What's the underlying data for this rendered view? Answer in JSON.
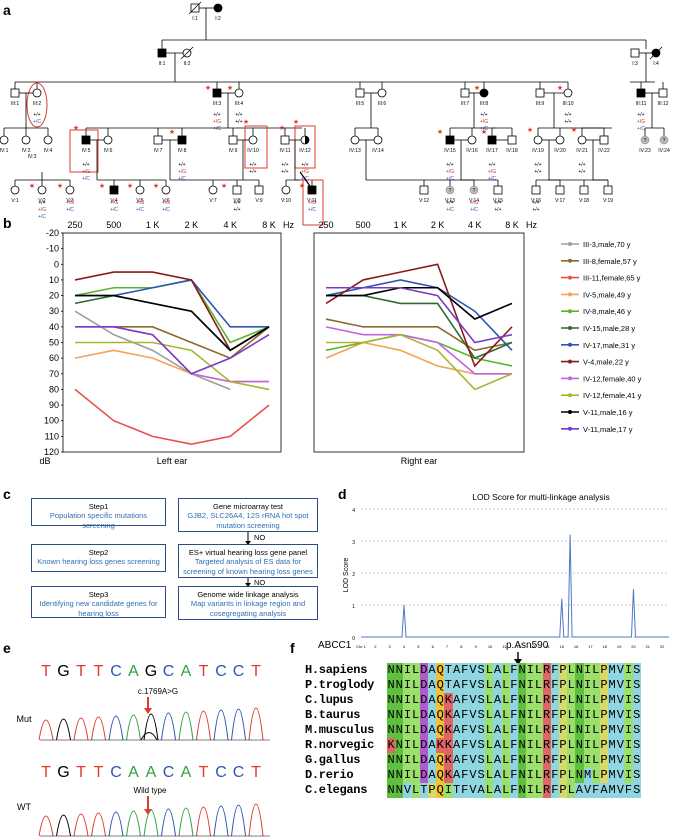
{
  "panels": {
    "a": "a",
    "b": "b",
    "c": "c",
    "d": "d",
    "e": "e",
    "f": "f"
  },
  "pedigree": {
    "gen1": [
      "I:1",
      "I:2",
      "I:3",
      "I:4"
    ],
    "gen2": [
      "II:1",
      "II:2"
    ],
    "gen3": [
      "III:1",
      "III:2",
      "III:3",
      "III:4",
      "III:5",
      "III:6",
      "III:7",
      "III:8",
      "III:9",
      "III:10",
      "III:11",
      "III:12"
    ],
    "gen4": [
      "IV:1",
      "IV:2",
      "IV:3",
      "IV:4",
      "IV:5",
      "IV:6",
      "IV:7",
      "IV:8",
      "IV:9",
      "IV:10",
      "IV:11",
      "IV:12",
      "IV:13",
      "IV:14",
      "IV:15",
      "IV:16",
      "IV:17",
      "IV:18",
      "IV:19",
      "IV:20",
      "IV:21",
      "IV:22",
      "IV:23",
      "IV:24"
    ],
    "gen5": [
      "V:1",
      "V:2",
      "V:3",
      "V:4",
      "V:5",
      "V:6",
      "V:7",
      "V:8",
      "V:9",
      "V:10",
      "V:11",
      "V:12",
      "V:13",
      "V:14",
      "V:15",
      "V:16",
      "V:17",
      "V:18",
      "V:19"
    ],
    "genotypes": {
      "wt": "+/+",
      "mut_g": "+/G",
      "mut_c": "+/C",
      "unknown": "?"
    }
  },
  "audiogram": {
    "freq_labels": [
      "250",
      "500",
      "1 K",
      "2 K",
      "4 K",
      "8 K"
    ],
    "hz": "Hz",
    "y_ticks": [
      "-20",
      "-10",
      "0",
      "10",
      "20",
      "30",
      "40",
      "50",
      "60",
      "70",
      "80",
      "90",
      "100",
      "110",
      "120"
    ],
    "y_unit": "dB",
    "left_title": "Left ear",
    "right_title": "Right ear",
    "legend": [
      "III-3,male,70 y",
      "III-8,female,57 y",
      "III-11,female,65 y",
      "IV-5,male,49 y",
      "IV-8,male,46 y",
      "IV-15,male,28 y",
      "IV-17,male,31 y",
      "V-4,male,22 y",
      "IV-12,female,40 y",
      "IV-12,female,41 y",
      "V-11,male,16 y",
      "V-11,male,17 y"
    ],
    "colors": [
      "#9e9e9e",
      "#8b6a2f",
      "#e8504e",
      "#f4a259",
      "#5ab52e",
      "#2e6b2e",
      "#2e57b5",
      "#8a1c1c",
      "#c266e0",
      "#a9b52e",
      "#000000",
      "#7b3bc2"
    ],
    "left": [
      [
        30,
        45,
        55,
        70,
        80,
        null
      ],
      [
        null,
        40,
        40,
        50,
        60,
        40
      ],
      [
        80,
        100,
        110,
        115,
        110,
        90
      ],
      [
        60,
        55,
        60,
        70,
        75,
        75
      ],
      [
        20,
        15,
        15,
        10,
        50,
        40
      ],
      [
        25,
        20,
        25,
        30,
        55,
        40
      ],
      [
        20,
        20,
        15,
        10,
        40,
        40
      ],
      [
        10,
        5,
        5,
        10,
        55,
        40
      ],
      [
        40,
        40,
        45,
        70,
        75,
        75
      ],
      [
        50,
        50,
        50,
        55,
        75,
        80
      ],
      [
        20,
        20,
        25,
        30,
        55,
        40
      ],
      [
        40,
        40,
        45,
        70,
        60,
        45
      ]
    ],
    "right": [
      [
        null,
        null,
        null,
        null,
        null,
        null
      ],
      [
        35,
        40,
        40,
        40,
        55,
        50
      ],
      [
        null,
        null,
        null,
        null,
        null,
        null
      ],
      [
        60,
        50,
        55,
        65,
        70,
        70
      ],
      [
        55,
        50,
        45,
        50,
        60,
        65
      ],
      [
        20,
        20,
        25,
        25,
        60,
        50
      ],
      [
        20,
        15,
        10,
        15,
        30,
        55
      ],
      [
        25,
        10,
        5,
        0,
        65,
        40
      ],
      [
        40,
        45,
        45,
        50,
        70,
        70
      ],
      [
        50,
        50,
        45,
        55,
        80,
        70
      ],
      [
        20,
        20,
        15,
        15,
        35,
        25
      ],
      [
        15,
        15,
        15,
        20,
        50,
        45
      ]
    ]
  },
  "flow": {
    "step1_t": "Step1",
    "step1_s": "Population specific mutations screening",
    "step2_t": "Step2",
    "step2_s": "Known hearing loss genes screening",
    "step3_t": "Step3",
    "step3_s": "Identifying new candidate genes for hearing loss",
    "box1_t": "Gene microarray test",
    "box1_s": "GJB2, SLC26A4, 12S rRNA hot spot mutation screening",
    "box2_t": "ES+ virtual hearing loss gene panel",
    "box2_s": "Targeted analysis of ES data for screening of known hearing loss genes",
    "box3_t": "Genome wide linkage analysis",
    "box3_s": "Map variants in linkage region and cosegregating analysis",
    "no": "NO"
  },
  "chart_data": {
    "type": "line",
    "title": "LOD Score for multi-linkage analysis",
    "ylabel": "LOD Score",
    "ylim": [
      0,
      4
    ],
    "y_ticks": [
      "0",
      "1",
      "2",
      "3",
      "4"
    ],
    "x_chr_label": "Chr 1",
    "chromosomes": [
      "2",
      "3",
      "4",
      "5",
      "6",
      "7",
      "8",
      "9",
      "10",
      "11",
      "12",
      "13",
      "14",
      "15",
      "16",
      "17",
      "18",
      "19",
      "20",
      "21",
      "22"
    ],
    "peaks": [
      {
        "chr": "4",
        "lod": 1.0
      },
      {
        "chr": "15",
        "lod": 1.2
      },
      {
        "chr": "16",
        "lod": 3.2
      },
      {
        "chr": "20",
        "lod": 1.5
      }
    ]
  },
  "chromatogram": {
    "mut_seq": [
      "T",
      "G",
      "T",
      "T",
      "C",
      "A",
      "G",
      "C",
      "A",
      "T",
      "C",
      "C",
      "T"
    ],
    "wt_seq": [
      "T",
      "G",
      "T",
      "T",
      "C",
      "A",
      "A",
      "C",
      "A",
      "T",
      "C",
      "C",
      "T"
    ],
    "mut_label": "Mut",
    "wt_label": "WT",
    "mut_annot": "c.1769A>G",
    "wt_annot": "Wild type"
  },
  "alignment": {
    "gene": "ABCC1",
    "site": "p.Asn590",
    "species": [
      "H.sapiens",
      "P.troglody",
      "C.lupus",
      "B.taurus",
      "M.musculus",
      "R.norvegic",
      "G.gallus",
      "D.rerio",
      "C.elegans"
    ],
    "seqs": [
      "NNILDAQTAFVSLALFNILRFPLNILPMVIS",
      "NNILDAQTAFVSLALFNILRFPLNILPMVIS",
      "NNILDAQKAFVSLALFNILRFPLNILPMVIS",
      "NNILDAQKAFVSLALFNILRFPLNILPMVIS",
      "NNILDAQKAFVSLALFNILRFPLNILPMVIS",
      "KNILDAKKAFVSLALFNILRFPLNILPMVIS",
      "NNILDAQKAFVSLALFNILRFPLNILPMVIS",
      "NNILDAQKAFVSLALFNILRFPLNMLPMVIS",
      "NNVLTPQITFVALALFNILRFPLAVFAMVFS"
    ]
  }
}
